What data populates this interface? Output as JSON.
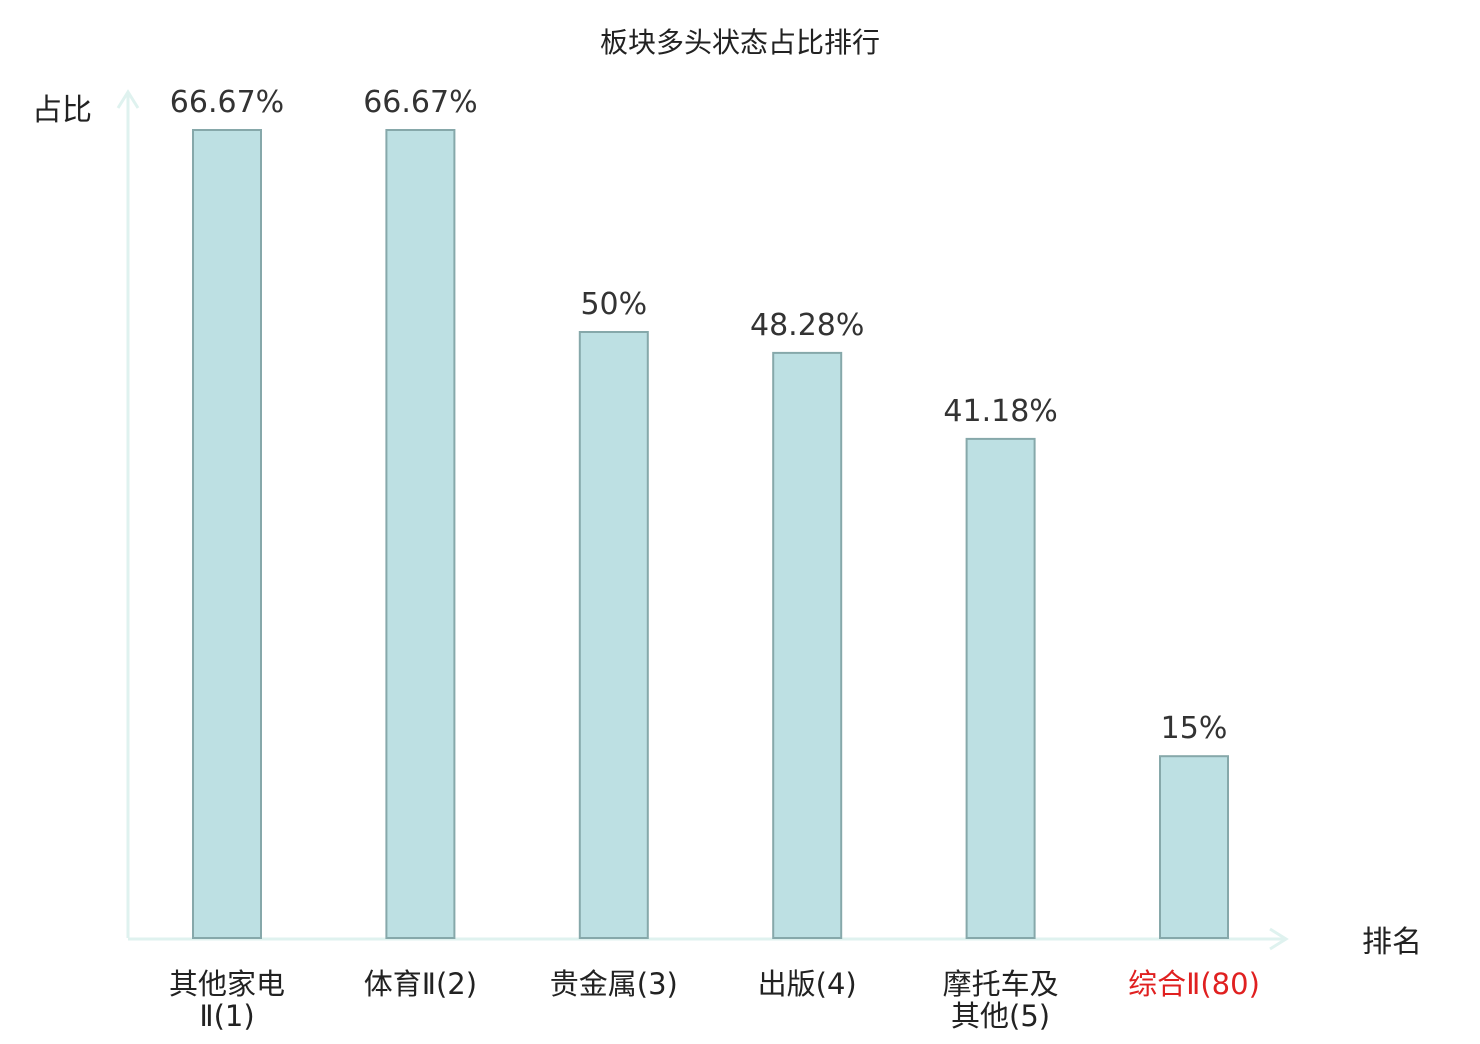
{
  "chart_data": {
    "type": "bar",
    "title": "板块多头状态占比排行",
    "ylabel": "占比",
    "xlabel": "排名",
    "ylim": [
      0,
      70
    ],
    "grid": false,
    "legend": "none",
    "categories": [
      [
        "其他家电",
        "Ⅱ(1)"
      ],
      [
        "体育Ⅱ(2)"
      ],
      [
        "贵金属(3)"
      ],
      [
        "出版(4)"
      ],
      [
        "摩托车及",
        "其他(5)"
      ],
      [
        "综合Ⅱ(80)"
      ]
    ],
    "values": [
      66.67,
      66.67,
      50,
      48.28,
      41.18,
      15
    ],
    "value_labels": [
      "66.67%",
      "66.67%",
      "50%",
      "48.28%",
      "41.18%",
      "15%"
    ],
    "highlight_index": 5
  },
  "colors": {
    "bar_fill": "#bde0e3",
    "bar_stroke": "#86a8aa",
    "axis": "#dff2ef",
    "text": "#222222",
    "value_text": "#333333",
    "highlight": "#e02020"
  }
}
